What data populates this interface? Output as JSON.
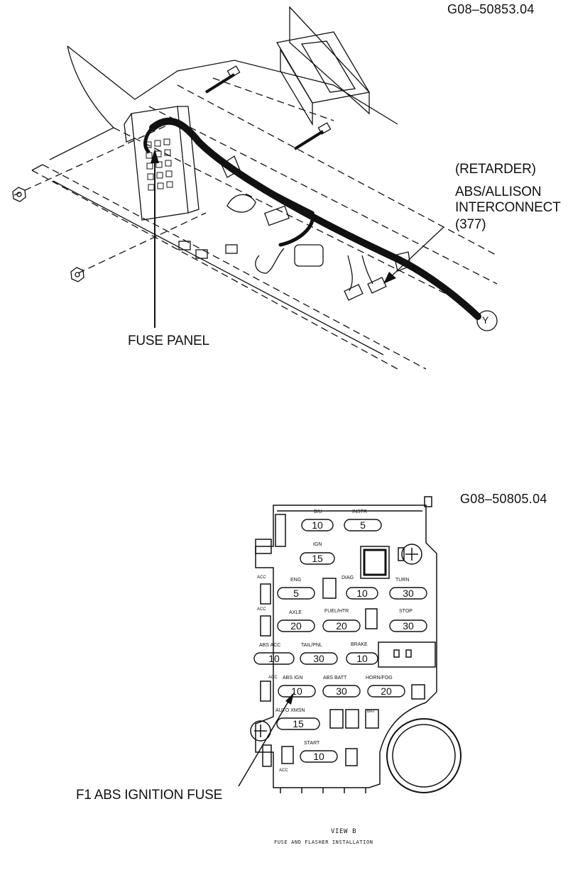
{
  "top_figure": {
    "ref_code": "G08–50853.04",
    "retarder_label": "(RETARDER)",
    "abs_label": "ABS/ALLISON",
    "interconnect_label": "INTERCONNECT",
    "circuit_number": "(377)",
    "connector_letter": "Y",
    "fuse_panel_label": "FUSE PANEL"
  },
  "bottom_figure": {
    "ref_code": "G08–50805.04",
    "ign_fuse_callout": "F1 ABS IGNITION FUSE",
    "view_label": "VIEW   B",
    "view_caption": "FUSE AND FLASHER INSTALLATION",
    "fuses": [
      {
        "name": "B/U",
        "rating": "10"
      },
      {
        "name": "INSTR",
        "rating": "5"
      },
      {
        "name": "IGN",
        "rating": "15"
      },
      {
        "name": "ENG",
        "rating": "5"
      },
      {
        "name": "DIAG",
        "rating": "10"
      },
      {
        "name": "TURN",
        "rating": "30"
      },
      {
        "name": "AXLE",
        "rating": "20"
      },
      {
        "name": "FUEL/HTR",
        "rating": "20"
      },
      {
        "name": "STOP",
        "rating": "30"
      },
      {
        "name": "ABS ACC",
        "rating": "10"
      },
      {
        "name": "TAIL/PNL",
        "rating": "30"
      },
      {
        "name": "BRAKE",
        "rating": "10"
      },
      {
        "name": "ABS IGN",
        "rating": "10"
      },
      {
        "name": "ABS BATT",
        "rating": "30"
      },
      {
        "name": "HORN/FOG",
        "rating": "20"
      },
      {
        "name": "AUTO XMSN",
        "rating": "15"
      },
      {
        "name": "START",
        "rating": "10"
      }
    ],
    "small_labels": [
      "ACC",
      "ACC",
      "ACC",
      "BAT",
      "ACC"
    ]
  }
}
